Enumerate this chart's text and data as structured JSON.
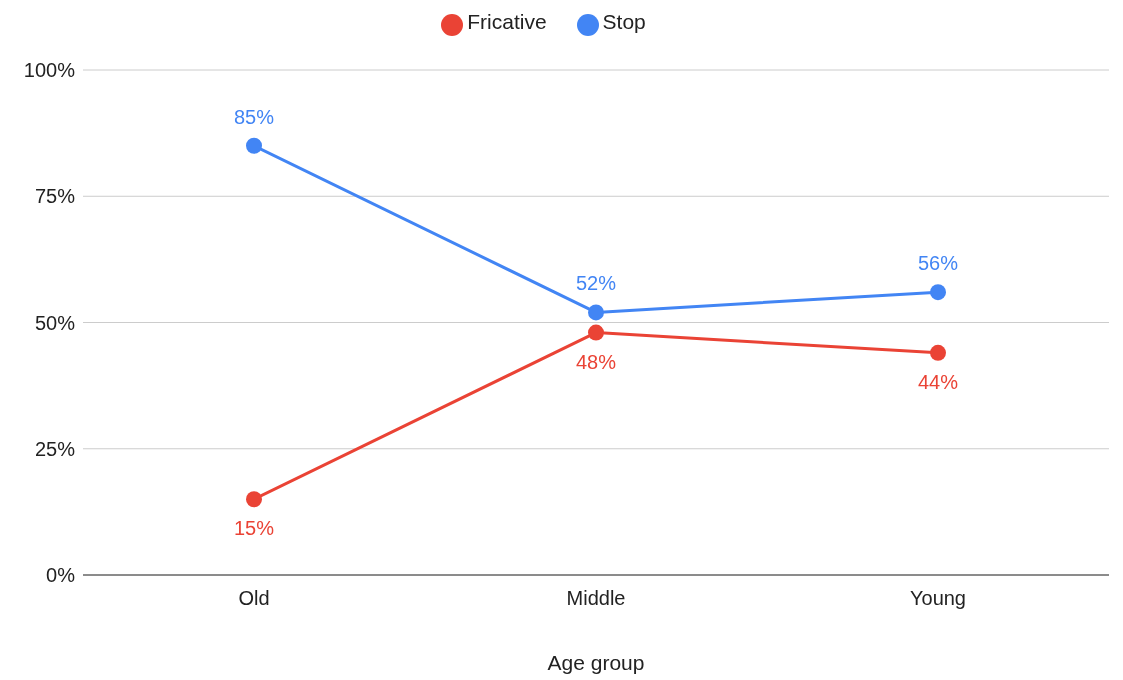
{
  "chart_data": {
    "type": "line",
    "xlabel": "Age group",
    "categories": [
      "Old",
      "Middle",
      "Young"
    ],
    "series": [
      {
        "name": "Stop",
        "color": "#4285f4",
        "values": [
          85,
          52,
          56
        ],
        "value_labels": [
          "85%",
          "52%",
          "56%"
        ]
      },
      {
        "name": "Fricative",
        "color": "#ea4335",
        "values": [
          15,
          48,
          44
        ],
        "value_labels": [
          "15%",
          "48%",
          "44%"
        ]
      }
    ],
    "ylim": [
      0,
      100
    ],
    "yticks": [
      {
        "value": 0,
        "label": "0%"
      },
      {
        "value": 25,
        "label": "25%"
      },
      {
        "value": 50,
        "label": "50%"
      },
      {
        "value": 75,
        "label": "75%"
      },
      {
        "value": 100,
        "label": "100%"
      }
    ],
    "grid": "y",
    "legend": "top",
    "marker": "circle",
    "line_style": "solid"
  }
}
